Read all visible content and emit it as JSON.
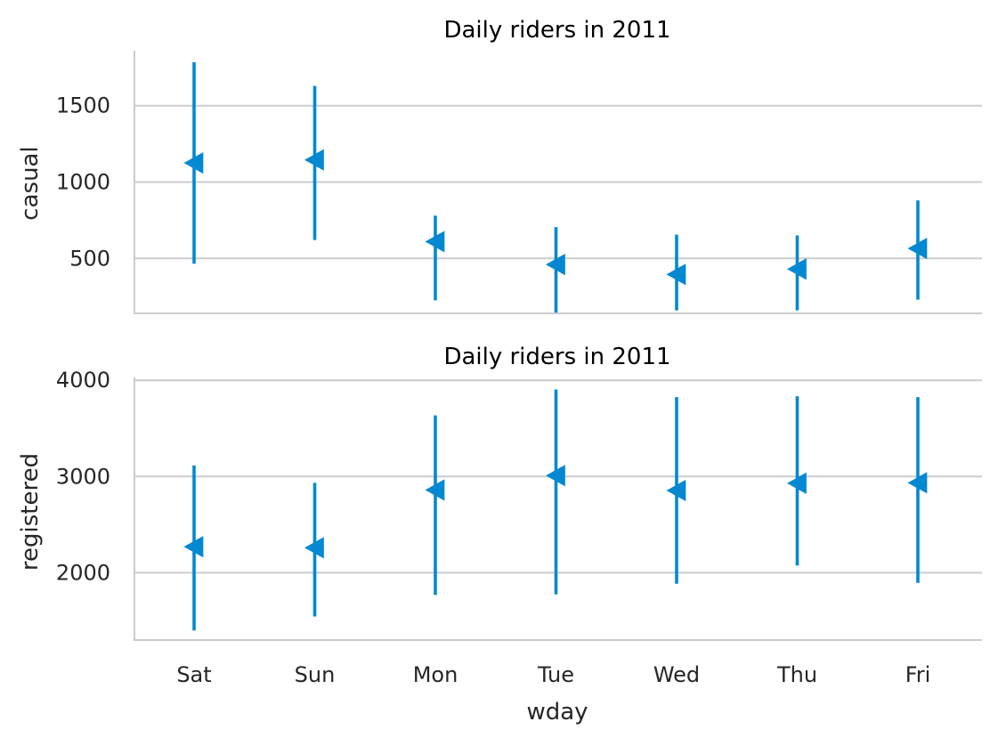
{
  "chart_data": [
    {
      "type": "errorbar",
      "title": "Daily riders in 2011",
      "xlabel": "",
      "ylabel": "casual",
      "categories": [
        "Sat",
        "Sun",
        "Mon",
        "Tue",
        "Wed",
        "Thu",
        "Fri"
      ],
      "values": [
        1125,
        1145,
        610,
        460,
        395,
        430,
        565
      ],
      "lower": [
        465,
        620,
        225,
        145,
        160,
        160,
        230
      ],
      "upper": [
        1785,
        1630,
        780,
        705,
        655,
        650,
        880
      ],
      "ylim": [
        140,
        1860
      ],
      "yticks": [
        500,
        1000,
        1500
      ],
      "grid": true,
      "marker": "left-triangle",
      "color": "#0388d1"
    },
    {
      "type": "errorbar",
      "title": "Daily riders in 2011",
      "xlabel": "wday",
      "ylabel": "registered",
      "categories": [
        "Sat",
        "Sun",
        "Mon",
        "Tue",
        "Wed",
        "Thu",
        "Fri"
      ],
      "values": [
        2270,
        2260,
        2860,
        3010,
        2855,
        2930,
        2935
      ],
      "lower": [
        1400,
        1545,
        1770,
        1775,
        1885,
        2075,
        1895
      ],
      "upper": [
        3115,
        2935,
        3635,
        3905,
        3825,
        3835,
        3825
      ],
      "ylim": [
        1300,
        4030
      ],
      "yticks": [
        2000,
        3000,
        4000
      ],
      "grid": true,
      "marker": "left-triangle",
      "color": "#0388d1"
    }
  ]
}
